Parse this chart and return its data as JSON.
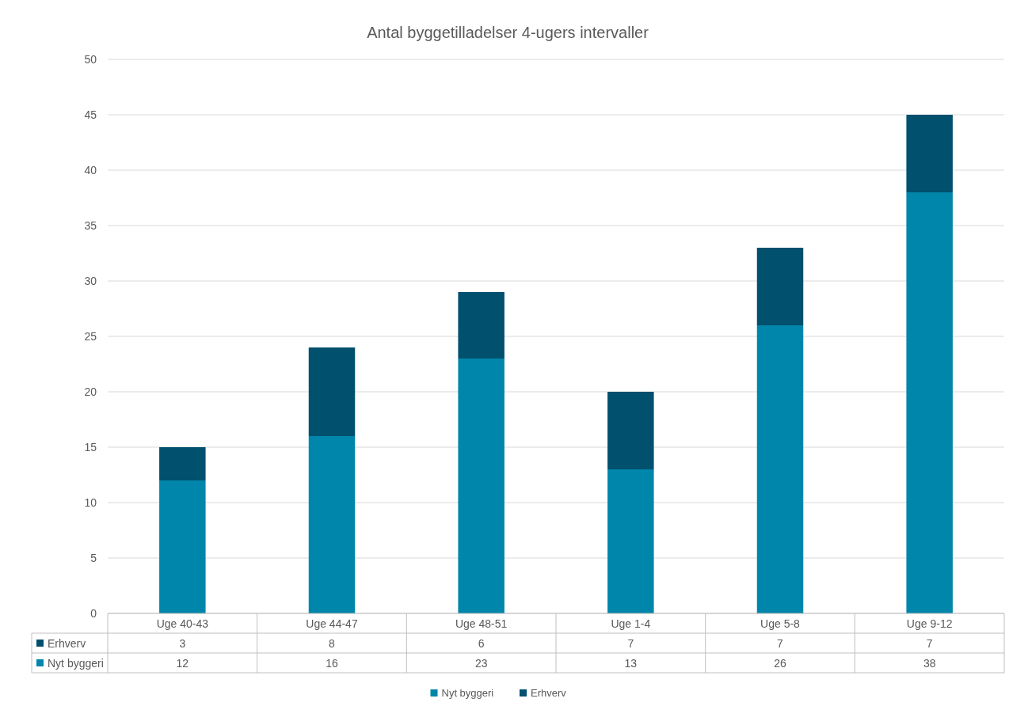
{
  "chart_data": {
    "type": "bar",
    "title": "Antal byggetilladelser 4-ugers intervaller",
    "stacked": true,
    "categories": [
      "Uge 40-43",
      "Uge 44-47",
      "Uge 48-51",
      "Uge 1-4",
      "Uge 5-8",
      "Uge 9-12"
    ],
    "series": [
      {
        "name": "Nyt byggeri",
        "color": "#0086ab",
        "values": [
          12,
          16,
          23,
          13,
          26,
          38
        ]
      },
      {
        "name": "Erhverv",
        "color": "#00506e",
        "values": [
          3,
          8,
          6,
          7,
          7,
          7
        ]
      }
    ],
    "ylim": [
      0,
      50
    ],
    "yticks": [
      0,
      5,
      10,
      15,
      20,
      25,
      30,
      35,
      40,
      45,
      50
    ],
    "grid": "y",
    "legend": "bottom",
    "data_labels": true
  }
}
